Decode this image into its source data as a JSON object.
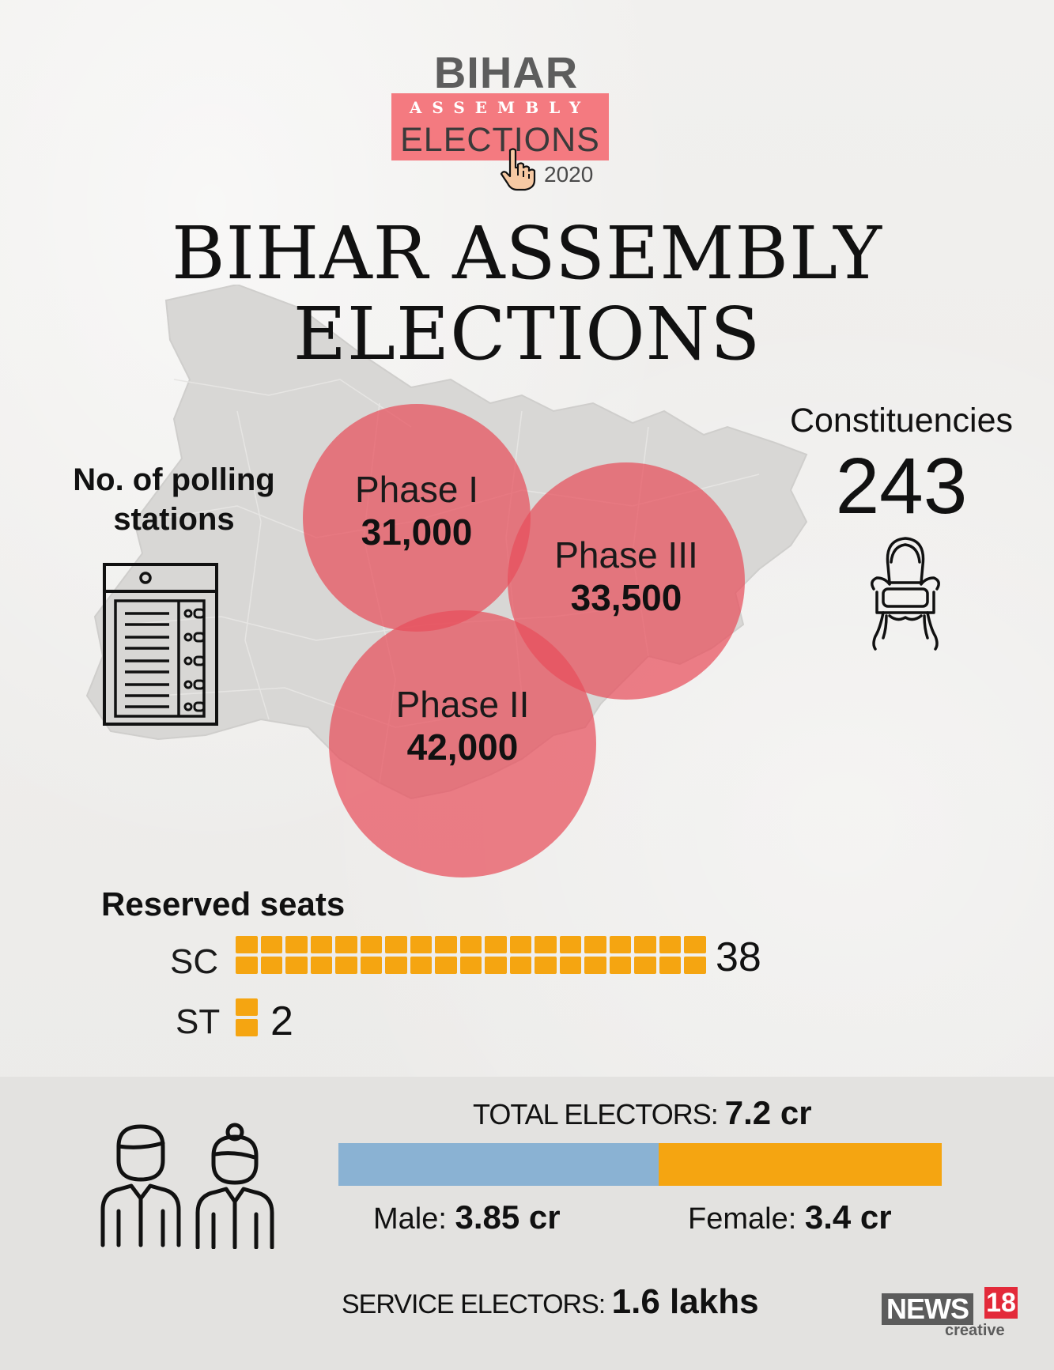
{
  "logo": {
    "top": "BIHAR",
    "middle": "ASSEMBLY",
    "bottom": "ELECTIONS",
    "year": "2020"
  },
  "title": {
    "line1": "BIHAR ASSEMBLY",
    "line2": "ELECTIONS"
  },
  "polling": {
    "label_line1": "No. of polling",
    "label_line2": "stations",
    "phases": [
      {
        "name": "Phase I",
        "value": "31,000"
      },
      {
        "name": "Phase II",
        "value": "42,000"
      },
      {
        "name": "Phase III",
        "value": "33,500"
      }
    ]
  },
  "constituencies": {
    "label": "Constituencies",
    "value": "243"
  },
  "reserved": {
    "title": "Reserved seats",
    "sc_label": "SC",
    "sc_value": "38",
    "sc_count": 38,
    "st_label": "ST",
    "st_value": "2",
    "st_count": 2
  },
  "electors": {
    "total_label": "TOTAL ELECTORS:",
    "total_value": "7.2 cr",
    "male_label": "Male:",
    "male_value": "3.85 cr",
    "male_amount": 3.85,
    "female_label": "Female:",
    "female_value": "3.4 cr",
    "female_amount": 3.4,
    "service_label": "SERVICE ELECTORS:",
    "service_value": "1.6 lakhs"
  },
  "brand": {
    "word": "NEWS",
    "number": "18",
    "sub": "creative"
  },
  "colors": {
    "circle": "#e84f5c",
    "squares": "#f5a511",
    "male_bar": "#8ab2d3",
    "female_bar": "#f5a511",
    "logo_box": "#f47a80"
  }
}
